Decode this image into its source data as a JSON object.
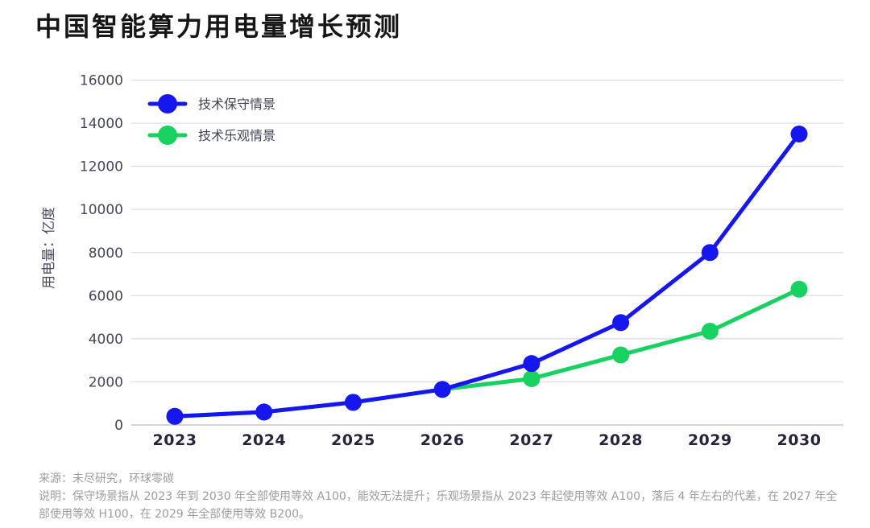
{
  "page": {
    "title": "中国智能算力用电量增长预测"
  },
  "chart_data": {
    "type": "line",
    "title": "中国智能算力用电量增长预测",
    "categories": [
      "2023",
      "2024",
      "2025",
      "2026",
      "2027",
      "2028",
      "2029",
      "2030"
    ],
    "series": [
      {
        "name": "技术保守情景",
        "color": "#1616ef",
        "values": [
          400,
          600,
          1050,
          1650,
          2850,
          4750,
          8000,
          13500
        ]
      },
      {
        "name": "技术乐观情景",
        "color": "#17d160",
        "values": [
          400,
          600,
          1050,
          1650,
          2150,
          3250,
          4350,
          6300
        ]
      }
    ],
    "xlabel": "",
    "ylabel": "用电量：亿度",
    "ylim": [
      0,
      16000
    ],
    "ytick_step": 2000,
    "yticks": [
      0,
      2000,
      4000,
      6000,
      8000,
      10000,
      12000,
      14000,
      16000
    ],
    "grid": true,
    "marker": "circle",
    "legend_position": "inside-top-left"
  },
  "colors": {
    "background": "#ffffff",
    "title_text": "#161616",
    "grid": "#dcdcdc",
    "baseline": "#c7c7c7",
    "y_tick_text": "#444757",
    "x_tick_text": "#23263a",
    "axis_title_text": "#4a4d5c",
    "legend_text": "#3f4454",
    "footer_text": "#9c9c9c"
  },
  "footer": {
    "source": "来源：未尽研究，环球零碳",
    "note": "说明：保守场景指从 2023 年到 2030 年全部使用等效 A100，能效无法提升；乐观场景指从 2023 年起使用等效 A100，落后 4 年左右的代差，在 2027 年全部使用等效 H100，在 2029 年全部使用等效 B200。"
  }
}
